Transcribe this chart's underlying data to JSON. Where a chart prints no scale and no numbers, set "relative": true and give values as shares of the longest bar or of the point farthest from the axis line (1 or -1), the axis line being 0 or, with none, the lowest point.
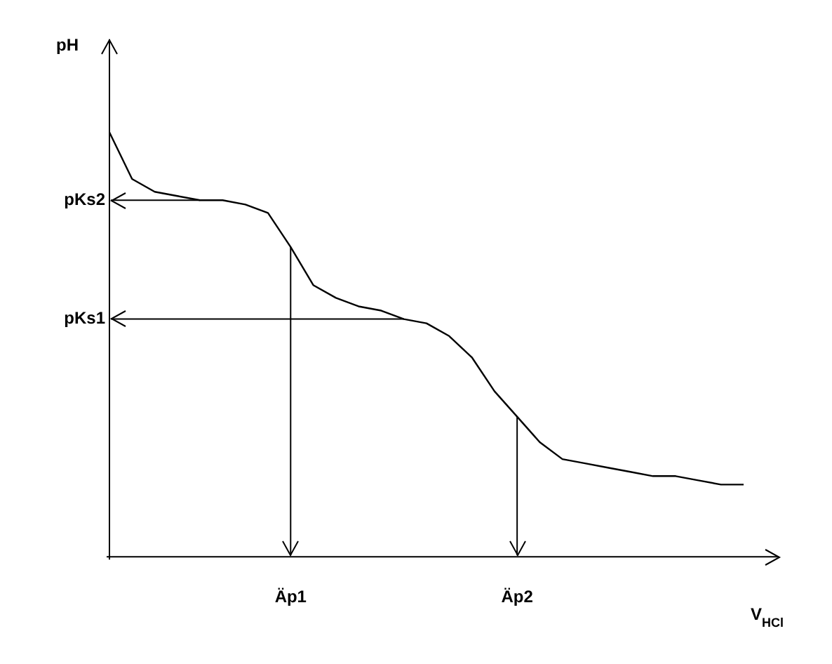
{
  "chart_data": {
    "type": "line",
    "relative": true,
    "ylabel": "pH",
    "xlabel": "V$_{HCl}$",
    "color": "#000000",
    "marker": "none",
    "grid": false,
    "legend": false,
    "categories": [
      null,
      null,
      null,
      null,
      null,
      null,
      null,
      null,
      "Äp1",
      null,
      null,
      null,
      null,
      null,
      null,
      null,
      null,
      null,
      "Äp2",
      null,
      null,
      null,
      null,
      null,
      null,
      null,
      null,
      null,
      null
    ],
    "values": [
      1.0,
      0.89,
      0.86,
      0.85,
      0.84,
      0.84,
      0.83,
      0.81,
      0.73,
      0.64,
      0.61,
      0.59,
      0.58,
      0.56,
      0.55,
      0.52,
      0.47,
      0.39,
      0.33,
      0.27,
      0.23,
      0.22,
      0.21,
      0.2,
      0.19,
      0.19,
      0.18,
      0.17,
      0.17
    ],
    "ref_lines": [
      {
        "axis": "y",
        "value": 0.84,
        "label": "pKs2"
      },
      {
        "axis": "y",
        "value": 0.56,
        "label": "pKs1"
      },
      {
        "axis": "x",
        "value": "Äp1"
      },
      {
        "axis": "x",
        "value": "Äp2"
      }
    ]
  }
}
